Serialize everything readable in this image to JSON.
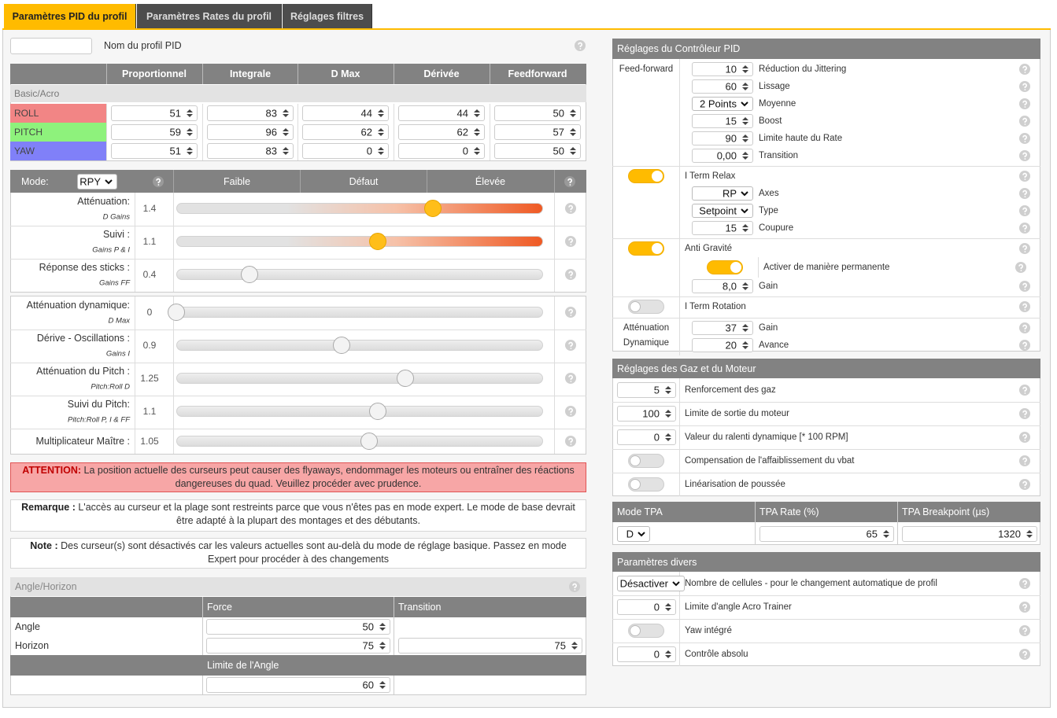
{
  "tabs": [
    "Paramètres PID du profil",
    "Paramètres Rates du profil",
    "Réglages filtres"
  ],
  "active_tab": 0,
  "profile": {
    "label": "Nom du profil PID"
  },
  "pid_table": {
    "headers": [
      "Proportionnel",
      "Integrale",
      "D Max",
      "Dérivée",
      "Feedforward"
    ],
    "group": "Basic/Acro",
    "rows": [
      {
        "name": "ROLL",
        "color": "#f28585",
        "values": [
          51,
          83,
          44,
          44,
          50
        ]
      },
      {
        "name": "PITCH",
        "color": "#8ef27c",
        "values": [
          59,
          96,
          62,
          62,
          57
        ]
      },
      {
        "name": "YAW",
        "color": "#8080f8",
        "values": [
          51,
          83,
          0,
          0,
          50
        ]
      }
    ]
  },
  "sliders": {
    "mode_label": "Mode:",
    "mode": "RPY",
    "columns": [
      "Faible",
      "Défaut",
      "Élevée"
    ],
    "range": [
      0,
      2
    ],
    "groups": [
      [
        {
          "label": "Atténuation:",
          "sub": "D Gains",
          "value": 1.4,
          "warning": true
        },
        {
          "label": "Suivi :",
          "sub": "Gains P & I",
          "value": 1.1,
          "warning": true
        },
        {
          "label": "Réponse des sticks :",
          "sub": "Gains FF",
          "value": 0.4,
          "warning": false
        }
      ],
      [
        {
          "label": "Atténuation dynamique:",
          "sub": "D Max",
          "value": 0,
          "warning": false
        },
        {
          "label": "Dérive - Oscillations :",
          "sub": "Gains I",
          "value": 0.9,
          "warning": false
        },
        {
          "label": "Atténuation du Pitch :",
          "sub": "Pitch:Roll D",
          "value": 1.25,
          "warning": false
        },
        {
          "label": "Suivi du Pitch:",
          "sub": "Pitch:Roll P, I & FF",
          "value": 1.1,
          "warning": false
        },
        {
          "label": "Multiplicateur Maître :",
          "value": 1.05,
          "warning": false
        }
      ]
    ]
  },
  "warning": {
    "label": "ATTENTION:",
    "text": "La position actuelle des curseurs peut causer des flyaways, endommager les moteurs ou entraîner des réactions dangereuses du quad. Veuillez procéder avec prudence."
  },
  "remark": {
    "label": "Remarque :",
    "text": "L'accès au curseur et la plage sont restreints parce que vous n'êtes pas en mode expert. Le mode de base devrait être adapté à la plupart des montages et des débutants."
  },
  "note": {
    "label": "Note :",
    "text": "Des curseur(s) sont désactivés car les valeurs actuelles sont au-delà du mode de réglage basique. Passez en mode Expert pour procéder à des changements"
  },
  "angle_horizon": {
    "title": "Angle/Horizon",
    "headers": [
      "Force",
      "Transition"
    ],
    "rows": [
      {
        "name": "Angle",
        "force": 50
      },
      {
        "name": "Horizon",
        "force": 75,
        "transition": 75
      }
    ],
    "limit_header": "Limite de l'Angle",
    "limit": 60
  },
  "pid_controller": {
    "title": "Réglages du Contrôleur PID",
    "groups": [
      {
        "label": "Feed-forward",
        "items": [
          {
            "value": 10,
            "label": "Réduction du Jittering"
          },
          {
            "value": 60,
            "label": "Lissage"
          },
          {
            "select": "2 Points",
            "label": "Moyenne"
          },
          {
            "value": 15,
            "label": "Boost"
          },
          {
            "value": 90,
            "label": "Limite haute du Rate"
          },
          {
            "value": "0,00",
            "label": "Transition"
          }
        ]
      },
      {
        "toggle": true,
        "title": "I Term Relax",
        "items": [
          {
            "select": "RP",
            "label": "Axes"
          },
          {
            "select": "Setpoint",
            "label": "Type"
          },
          {
            "value": 15,
            "label": "Coupure"
          }
        ]
      },
      {
        "toggle": true,
        "title": "Anti Gravité",
        "sub_toggle": {
          "on": true,
          "label": "Activer de manière permanente"
        },
        "items": [
          {
            "value": "8,0",
            "label": "Gain"
          }
        ]
      },
      {
        "toggle": false,
        "title": "I Term Rotation",
        "items": []
      },
      {
        "label": "Atténuation Dynamique",
        "items": [
          {
            "value": 37,
            "label": "Gain"
          },
          {
            "value": 20,
            "label": "Avance"
          }
        ]
      }
    ]
  },
  "throttle": {
    "title": "Réglages des Gaz et du Moteur",
    "rows": [
      {
        "value": 5,
        "label": "Renforcement des gaz"
      },
      {
        "value": 100,
        "label": "Limite de sortie du moteur"
      },
      {
        "value": 0,
        "label": "Valeur du ralenti dynamique [* 100 RPM]"
      },
      {
        "toggle": false,
        "label": "Compensation de l'affaiblissement du vbat"
      },
      {
        "toggle": false,
        "label": "Linéarisation de poussée"
      }
    ]
  },
  "tpa": {
    "headers": [
      "Mode TPA",
      "TPA Rate (%)",
      "TPA Breakpoint (µs)"
    ],
    "mode": "D",
    "rate": 65,
    "breakpoint": 1320
  },
  "misc": {
    "title": "Paramètres divers",
    "rows": [
      {
        "select": "Désactiver",
        "label": "Nombre de cellules - pour le changement automatique de profil"
      },
      {
        "value": 0,
        "label": "Limite d'angle Acro Trainer"
      },
      {
        "toggle": false,
        "label": "Yaw intégré"
      },
      {
        "value": 0,
        "label": "Contrôle absolu"
      }
    ]
  }
}
